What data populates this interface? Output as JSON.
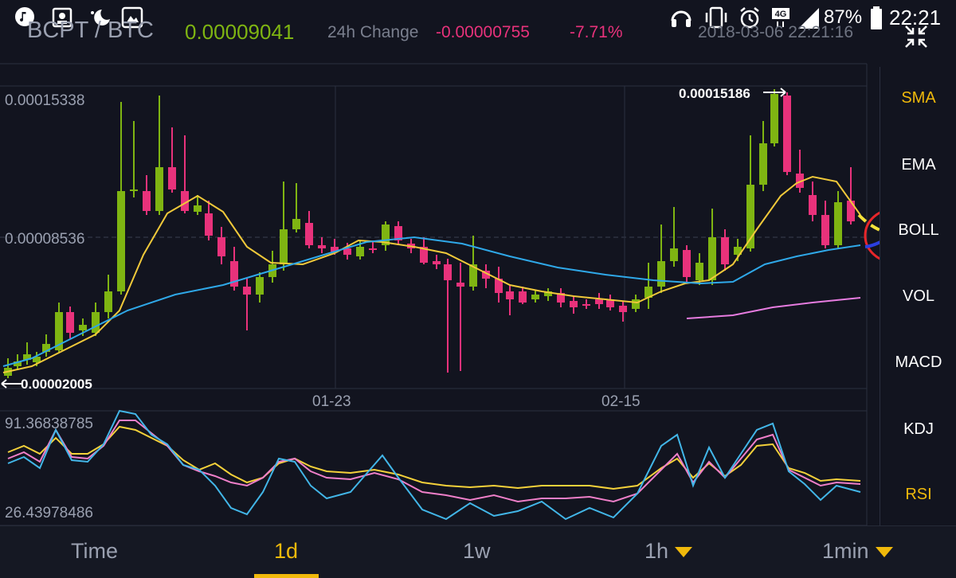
{
  "status_bar": {
    "network": "4G",
    "battery": "87%",
    "time": "22:21"
  },
  "header": {
    "pair": "BCPT / BTC",
    "price": "0.00009041",
    "change_label": "24h Change",
    "change_value": "-0.00000755",
    "change_pct": "-7.71%",
    "datetime": "2018-03-06 22:21:16"
  },
  "chart": {
    "high_label": "0.00015338",
    "mid_label": "0.00008536",
    "low_label": "0.00002005",
    "max_marker": "0.00015186",
    "date_labels": [
      "01-23",
      "02-15"
    ],
    "rsi_high": "91.36838785",
    "rsi_low": "26.43978486"
  },
  "indicators": [
    "SMA",
    "EMA",
    "BOLL",
    "VOL",
    "MACD",
    "KDJ",
    "RSI"
  ],
  "indicator_colors": {
    "SMA": "#f0b90b",
    "EMA": "#ffffff",
    "BOLL": "#ffffff",
    "VOL": "#ffffff",
    "MACD": "#ffffff",
    "KDJ": "#ffffff",
    "RSI": "#f0b90b"
  },
  "tabs": [
    {
      "label": "Time"
    },
    {
      "label": "1d"
    },
    {
      "label": "1w"
    },
    {
      "label": "1h"
    },
    {
      "label": "1min"
    }
  ],
  "colors": {
    "up": "#7fb512",
    "down": "#e8327b",
    "ma_short": "#f0c93a",
    "ma_long": "#2fa8e8",
    "ma_pink": "#e77ce0",
    "accent": "#f0b90b"
  }
}
